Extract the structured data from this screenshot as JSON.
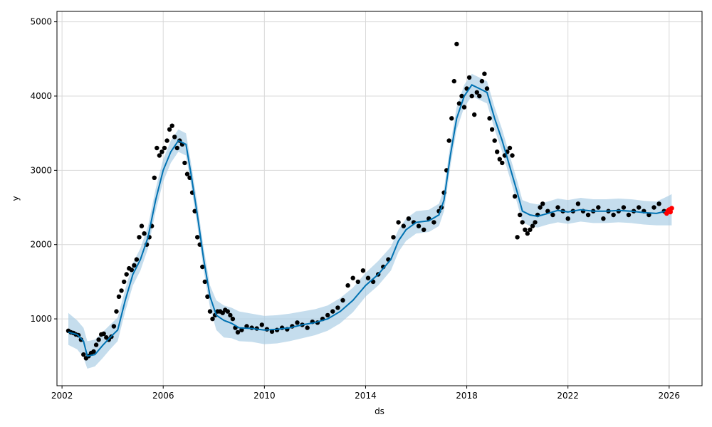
{
  "chart_data": {
    "type": "line",
    "title": "",
    "xlabel": "ds",
    "ylabel": "y",
    "xlim": [
      2001.8,
      2027.3
    ],
    "ylim": [
      100,
      5140
    ],
    "x_ticks": [
      2002,
      2006,
      2010,
      2014,
      2018,
      2022,
      2026
    ],
    "x_tick_labels": [
      "2002",
      "2006",
      "2010",
      "2014",
      "2018",
      "2022",
      "2026"
    ],
    "y_ticks": [
      1000,
      2000,
      3000,
      4000,
      5000
    ],
    "y_tick_labels": [
      "1000",
      "2000",
      "3000",
      "4000",
      "5000"
    ],
    "grid": true,
    "legend": "none",
    "colors": {
      "forecast_line": "#0072B2",
      "uncertainty_band": "#a6cbe3",
      "observed_points": "#000000",
      "recent_points": "#ff0000"
    },
    "series": [
      {
        "kind": "forecast",
        "x": [
          2002.25,
          2002.6,
          2002.85,
          2003.0,
          2003.3,
          2003.6,
          2003.9,
          2004.2,
          2004.5,
          2004.8,
          2005.1,
          2005.4,
          2005.7,
          2006.0,
          2006.3,
          2006.6,
          2006.9,
          2007.1,
          2007.35,
          2007.6,
          2007.85,
          2008.1,
          2008.4,
          2008.7,
          2009.0,
          2009.5,
          2010.0,
          2010.5,
          2011.0,
          2011.5,
          2012.0,
          2012.5,
          2013.0,
          2013.5,
          2014.0,
          2014.5,
          2015.0,
          2015.3,
          2015.6,
          2016.0,
          2016.5,
          2016.9,
          2017.1,
          2017.35,
          2017.6,
          2017.9,
          2018.2,
          2018.5,
          2018.8,
          2019.1,
          2019.4,
          2019.7,
          2020.0,
          2020.2,
          2020.5,
          2020.8,
          2021.2,
          2021.6,
          2022.0,
          2022.5,
          2023.0,
          2023.5,
          2024.0,
          2024.5,
          2025.0,
          2025.5,
          2026.0,
          2026.1
        ],
        "y": [
          820,
          790,
          700,
          500,
          520,
          640,
          750,
          850,
          1250,
          1600,
          1800,
          2100,
          2600,
          3000,
          3250,
          3400,
          3350,
          2950,
          2400,
          1800,
          1300,
          1050,
          980,
          940,
          880,
          870,
          850,
          860,
          880,
          920,
          950,
          1000,
          1100,
          1250,
          1450,
          1600,
          1800,
          2050,
          2200,
          2300,
          2320,
          2400,
          2600,
          3200,
          3700,
          4000,
          4150,
          4100,
          4050,
          3700,
          3400,
          3050,
          2700,
          2450,
          2400,
          2380,
          2420,
          2460,
          2440,
          2470,
          2450,
          2450,
          2460,
          2450,
          2430,
          2420,
          2460,
          2470
        ]
      },
      {
        "kind": "uncertainty_band",
        "x": [
          2002.25,
          2002.6,
          2002.85,
          2003.0,
          2003.3,
          2003.6,
          2003.9,
          2004.2,
          2004.5,
          2004.8,
          2005.1,
          2005.4,
          2005.7,
          2006.0,
          2006.3,
          2006.6,
          2006.9,
          2007.1,
          2007.35,
          2007.6,
          2007.85,
          2008.1,
          2008.4,
          2008.7,
          2009.0,
          2009.5,
          2010.0,
          2010.5,
          2011.0,
          2011.5,
          2012.0,
          2012.5,
          2013.0,
          2013.5,
          2014.0,
          2014.5,
          2015.0,
          2015.3,
          2015.6,
          2016.0,
          2016.5,
          2016.9,
          2017.1,
          2017.35,
          2017.6,
          2017.9,
          2018.2,
          2018.5,
          2018.8,
          2019.1,
          2019.4,
          2019.7,
          2020.0,
          2020.2,
          2020.5,
          2020.8,
          2021.2,
          2021.6,
          2022.0,
          2022.5,
          2023.0,
          2023.5,
          2024.0,
          2024.5,
          2025.0,
          2025.5,
          2026.0,
          2026.1
        ],
        "lower": [
          650,
          590,
          480,
          330,
          360,
          470,
          590,
          700,
          1100,
          1450,
          1650,
          1950,
          2450,
          2850,
          3100,
          3250,
          3200,
          2800,
          2250,
          1650,
          1150,
          850,
          750,
          740,
          700,
          690,
          660,
          670,
          700,
          740,
          780,
          840,
          940,
          1090,
          1300,
          1450,
          1650,
          1900,
          2050,
          2150,
          2170,
          2250,
          2450,
          3050,
          3550,
          3850,
          4000,
          3950,
          3900,
          3550,
          3250,
          2900,
          2550,
          2300,
          2250,
          2230,
          2270,
          2300,
          2280,
          2310,
          2290,
          2290,
          2300,
          2290,
          2270,
          2260,
          2260,
          2260
        ],
        "upper": [
          1080,
          980,
          880,
          700,
          720,
          820,
          920,
          1020,
          1400,
          1750,
          1950,
          2250,
          2750,
          3150,
          3400,
          3550,
          3500,
          3100,
          2550,
          1950,
          1450,
          1250,
          1180,
          1150,
          1100,
          1070,
          1040,
          1050,
          1070,
          1100,
          1130,
          1180,
          1280,
          1420,
          1620,
          1780,
          1970,
          2200,
          2350,
          2450,
          2470,
          2550,
          2750,
          3350,
          3850,
          4150,
          4300,
          4250,
          4200,
          3850,
          3550,
          3200,
          2850,
          2600,
          2560,
          2540,
          2580,
          2620,
          2600,
          2630,
          2610,
          2610,
          2620,
          2610,
          2590,
          2580,
          2660,
          2680
        ]
      },
      {
        "kind": "observed_points",
        "x": [
          2002.25,
          2002.35,
          2002.45,
          2002.55,
          2002.65,
          2002.75,
          2002.85,
          2002.95,
          2003.05,
          2003.15,
          2003.25,
          2003.35,
          2003.45,
          2003.55,
          2003.65,
          2003.75,
          2003.85,
          2003.95,
          2004.05,
          2004.15,
          2004.25,
          2004.35,
          2004.45,
          2004.55,
          2004.65,
          2004.75,
          2004.85,
          2004.95,
          2005.05,
          2005.15,
          2005.25,
          2005.35,
          2005.45,
          2005.55,
          2005.65,
          2005.75,
          2005.85,
          2005.95,
          2006.05,
          2006.15,
          2006.25,
          2006.35,
          2006.45,
          2006.55,
          2006.65,
          2006.75,
          2006.85,
          2006.95,
          2007.05,
          2007.15,
          2007.25,
          2007.35,
          2007.45,
          2007.55,
          2007.65,
          2007.75,
          2007.85,
          2007.95,
          2008.05,
          2008.15,
          2008.25,
          2008.35,
          2008.45,
          2008.55,
          2008.65,
          2008.75,
          2008.85,
          2008.95,
          2009.1,
          2009.3,
          2009.5,
          2009.7,
          2009.9,
          2010.1,
          2010.3,
          2010.5,
          2010.7,
          2010.9,
          2011.1,
          2011.3,
          2011.5,
          2011.7,
          2011.9,
          2012.1,
          2012.3,
          2012.5,
          2012.7,
          2012.9,
          2013.1,
          2013.3,
          2013.5,
          2013.7,
          2013.9,
          2014.1,
          2014.3,
          2014.5,
          2014.7,
          2014.9,
          2015.1,
          2015.3,
          2015.5,
          2015.7,
          2015.9,
          2016.1,
          2016.3,
          2016.5,
          2016.7,
          2016.9,
          2017.0,
          2017.1,
          2017.2,
          2017.3,
          2017.4,
          2017.5,
          2017.6,
          2017.7,
          2017.8,
          2017.9,
          2018.0,
          2018.1,
          2018.2,
          2018.3,
          2018.4,
          2018.5,
          2018.6,
          2018.7,
          2018.8,
          2018.9,
          2019.0,
          2019.1,
          2019.2,
          2019.3,
          2019.4,
          2019.5,
          2019.6,
          2019.7,
          2019.8,
          2019.9,
          2020.0,
          2020.1,
          2020.2,
          2020.3,
          2020.4,
          2020.5,
          2020.6,
          2020.7,
          2020.8,
          2020.9,
          2021.0,
          2021.2,
          2021.4,
          2021.6,
          2021.8,
          2022.0,
          2022.2,
          2022.4,
          2022.6,
          2022.8,
          2023.0,
          2023.2,
          2023.4,
          2023.6,
          2023.8,
          2024.0,
          2024.2,
          2024.4,
          2024.6,
          2024.8,
          2025.0,
          2025.2,
          2025.4,
          2025.6,
          2025.8
        ],
        "y": [
          840,
          820,
          810,
          790,
          780,
          720,
          520,
          470,
          500,
          540,
          560,
          650,
          720,
          790,
          800,
          750,
          720,
          760,
          900,
          1100,
          1300,
          1380,
          1500,
          1600,
          1680,
          1660,
          1720,
          1800,
          2100,
          2250,
          2150,
          2000,
          2100,
          2250,
          2900,
          3300,
          3200,
          3250,
          3300,
          3400,
          3550,
          3600,
          3450,
          3300,
          3400,
          3350,
          3100,
          2950,
          2900,
          2700,
          2450,
          2100,
          2000,
          1700,
          1500,
          1300,
          1100,
          1000,
          1050,
          1100,
          1100,
          1080,
          1120,
          1100,
          1050,
          1000,
          880,
          820,
          850,
          900,
          880,
          870,
          920,
          860,
          830,
          850,
          880,
          860,
          900,
          950,
          920,
          880,
          960,
          950,
          1000,
          1050,
          1100,
          1150,
          1250,
          1450,
          1550,
          1500,
          1650,
          1550,
          1500,
          1600,
          1700,
          1800,
          2100,
          2300,
          2250,
          2350,
          2300,
          2250,
          2200,
          2350,
          2300,
          2450,
          2500,
          2700,
          3000,
          3400,
          3700,
          4200,
          4700,
          3900,
          4000,
          3850,
          4100,
          4250,
          4000,
          3750,
          4050,
          4000,
          4200,
          4300,
          4100,
          3700,
          3550,
          3400,
          3250,
          3150,
          3100,
          3200,
          3250,
          3300,
          3200,
          2650,
          2100,
          2400,
          2300,
          2200,
          2150,
          2200,
          2250,
          2300,
          2400,
          2500,
          2550,
          2450,
          2400,
          2500,
          2450,
          2350,
          2450,
          2550,
          2450,
          2400,
          2450,
          2500,
          2350,
          2450,
          2400,
          2450,
          2500,
          2400,
          2450,
          2500,
          2450,
          2400,
          2500,
          2550,
          2450
        ]
      },
      {
        "kind": "recent_points",
        "x": [
          2025.9,
          2025.95,
          2026.0,
          2026.05,
          2026.1
        ],
        "y": [
          2420,
          2450,
          2470,
          2440,
          2490
        ]
      }
    ]
  }
}
